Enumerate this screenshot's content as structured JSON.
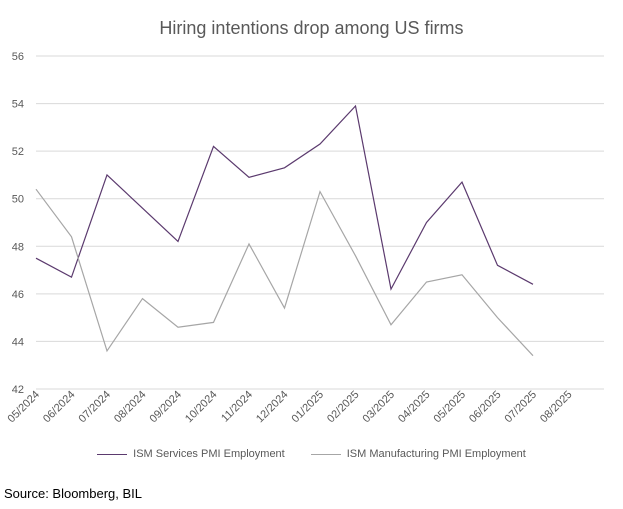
{
  "chart_data": {
    "type": "line",
    "title": "Hiring intentions drop among US firms",
    "xlabel": "",
    "ylabel": "",
    "categories": [
      "05/2024",
      "06/2024",
      "07/2024",
      "08/2024",
      "09/2024",
      "10/2024",
      "11/2024",
      "12/2024",
      "01/2025",
      "02/2025",
      "03/2025",
      "04/2025",
      "05/2025",
      "06/2025",
      "07/2025",
      "08/2025"
    ],
    "ylim": [
      42,
      56
    ],
    "yticks": [
      "42",
      "44",
      "46",
      "48",
      "50",
      "52",
      "54",
      "56"
    ],
    "grid": true,
    "legend_position": "bottom",
    "series": [
      {
        "name": "ISM Services PMI Employment",
        "color": "#5b3a6e",
        "values": [
          47.5,
          46.7,
          51.0,
          49.6,
          48.2,
          52.2,
          50.9,
          51.3,
          52.3,
          53.9,
          46.2,
          49.0,
          50.7,
          47.2,
          46.4,
          null
        ]
      },
      {
        "name": "ISM Manufacturing PMI Employment",
        "color": "#a6a6a6",
        "values": [
          50.4,
          48.4,
          43.6,
          45.8,
          44.6,
          44.8,
          48.1,
          45.4,
          50.3,
          47.6,
          44.7,
          46.5,
          46.8,
          45.0,
          43.4,
          null
        ]
      }
    ]
  },
  "source": "Source: Bloomberg, BIL"
}
